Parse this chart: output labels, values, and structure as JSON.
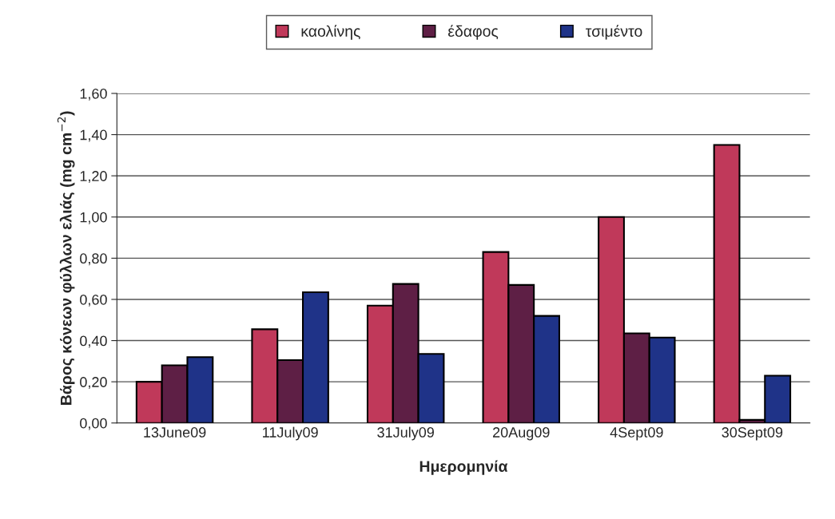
{
  "chart_data": {
    "type": "bar",
    "xlabel": "Ημερομηνία",
    "ylabel": "Βάρος κόνεων φύλλων ελιάς (mg cm$^{−2}$)",
    "categories": [
      "13June09",
      "11July09",
      "31July09",
      "20Aug09",
      "4Sept09",
      "30Sept09"
    ],
    "series": [
      {
        "name": "καολίνης",
        "color": "#c0395a",
        "values": [
          0.2,
          0.455,
          0.57,
          0.83,
          1.0,
          1.35
        ]
      },
      {
        "name": "έδαφος",
        "color": "#5e1f45",
        "values": [
          0.28,
          0.305,
          0.675,
          0.67,
          0.435,
          0.015
        ]
      },
      {
        "name": "τσιμέντο",
        "color": "#1f3388",
        "values": [
          0.32,
          0.635,
          0.335,
          0.52,
          0.415,
          0.23
        ]
      }
    ],
    "ylim": [
      0,
      1.6
    ],
    "yticks": [
      {
        "value": 0,
        "label": "0,00"
      },
      {
        "value": 0.2,
        "label": "0,20"
      },
      {
        "value": 0.4,
        "label": "0,40"
      },
      {
        "value": 0.6,
        "label": "0,60"
      },
      {
        "value": 0.8,
        "label": "0,80"
      },
      {
        "value": 1.0,
        "label": "1,00"
      },
      {
        "value": 1.2,
        "label": "1,20"
      },
      {
        "value": 1.4,
        "label": "1,40"
      },
      {
        "value": 1.6,
        "label": "1,60"
      }
    ],
    "grid": "y",
    "legend": "top"
  }
}
